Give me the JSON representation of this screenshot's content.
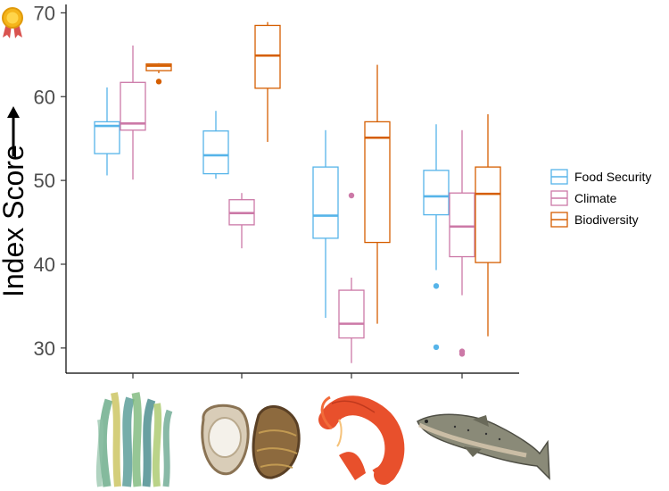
{
  "chart_data": {
    "type": "box",
    "ylabel": "Index Score",
    "ylim": [
      27,
      71
    ],
    "yticks": [
      30,
      40,
      50,
      60,
      70
    ],
    "groups": [
      "seaweed",
      "oyster",
      "shrimp",
      "salmon"
    ],
    "legend_position": "right",
    "series": [
      {
        "name": "Food Security",
        "color": "#56B4E9",
        "boxes": [
          {
            "group": "seaweed",
            "whisker_low": 50.6,
            "q1": 53.2,
            "median": 56.5,
            "q3": 57.0,
            "whisker_high": 61.1,
            "outliers": []
          },
          {
            "group": "oyster",
            "whisker_low": 50.2,
            "q1": 50.8,
            "median": 53.0,
            "q3": 55.9,
            "whisker_high": 58.3,
            "outliers": []
          },
          {
            "group": "shrimp",
            "whisker_low": 33.6,
            "q1": 43.1,
            "median": 45.8,
            "q3": 51.6,
            "whisker_high": 56.0,
            "outliers": []
          },
          {
            "group": "salmon",
            "whisker_low": 39.3,
            "q1": 45.9,
            "median": 48.1,
            "q3": 51.2,
            "whisker_high": 56.7,
            "outliers": [
              37.4,
              30.1
            ]
          }
        ]
      },
      {
        "name": "Climate",
        "color": "#CC79A7",
        "boxes": [
          {
            "group": "seaweed",
            "whisker_low": 50.1,
            "q1": 56.0,
            "median": 56.8,
            "q3": 61.7,
            "whisker_high": 66.1,
            "outliers": []
          },
          {
            "group": "oyster",
            "whisker_low": 41.9,
            "q1": 44.7,
            "median": 46.1,
            "q3": 47.7,
            "whisker_high": 48.5,
            "outliers": []
          },
          {
            "group": "shrimp",
            "whisker_low": 28.2,
            "q1": 31.2,
            "median": 32.9,
            "q3": 36.9,
            "whisker_high": 38.4,
            "outliers": [
              48.2
            ]
          },
          {
            "group": "salmon",
            "whisker_low": 36.3,
            "q1": 40.9,
            "median": 44.5,
            "q3": 48.5,
            "whisker_high": 56.0,
            "outliers": [
              29.6,
              29.3
            ]
          }
        ]
      },
      {
        "name": "Biodiversity",
        "color": "#D55E00",
        "boxes": [
          {
            "group": "seaweed",
            "whisker_low": 62.8,
            "q1": 63.1,
            "median": 63.7,
            "q3": 63.9,
            "whisker_high": 64.0,
            "outliers": [
              61.8
            ]
          },
          {
            "group": "oyster",
            "whisker_low": 54.6,
            "q1": 61.0,
            "median": 64.9,
            "q3": 68.5,
            "whisker_high": 68.9,
            "outliers": []
          },
          {
            "group": "shrimp",
            "whisker_low": 32.9,
            "q1": 42.6,
            "median": 55.1,
            "q3": 57.0,
            "whisker_high": 63.8,
            "outliers": []
          },
          {
            "group": "salmon",
            "whisker_low": 31.4,
            "q1": 40.2,
            "median": 48.4,
            "q3": 51.6,
            "whisker_high": 57.9,
            "outliers": []
          }
        ]
      }
    ]
  },
  "icons": {
    "badge": "award-ribbon-icon",
    "arrow": "right-arrow-icon",
    "group_images": [
      "seaweed-illustration",
      "oyster-illustration",
      "shrimp-illustration",
      "salmon-illustration"
    ]
  }
}
